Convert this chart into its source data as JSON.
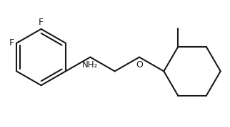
{
  "line_color": "#1a1a1a",
  "bg_color": "#ffffff",
  "line_width": 1.5,
  "fig_width": 3.22,
  "fig_height": 1.79,
  "dpi": 100,
  "font_size_atom": 9,
  "font_size_nh2": 8.5,
  "label_F": "F",
  "label_O": "O",
  "label_NH2": "NH₂"
}
